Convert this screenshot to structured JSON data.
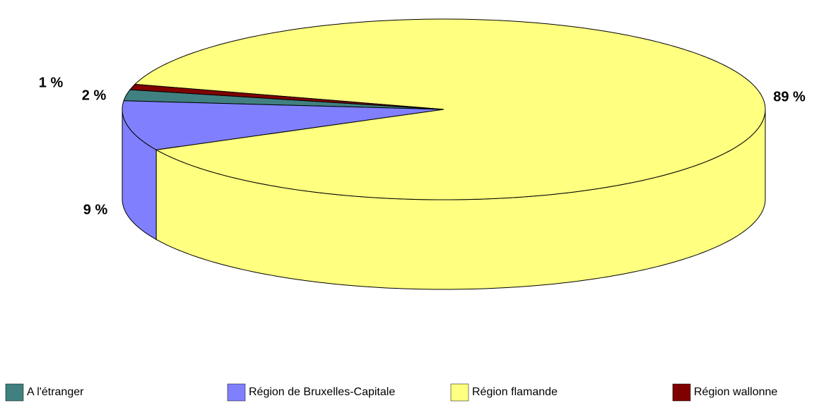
{
  "chart_data": {
    "type": "pie",
    "categories": [
      "A l'étranger",
      "Région de Bruxelles-Capitale",
      "Région flamande",
      "Région wallonne"
    ],
    "values": [
      2,
      9,
      89,
      1
    ],
    "value_labels": [
      "2 %",
      "9 %",
      "89 %",
      "1 %"
    ],
    "colors": [
      "#408080",
      "#8080ff",
      "#ffff80",
      "#800000"
    ],
    "legend": "bottom"
  }
}
